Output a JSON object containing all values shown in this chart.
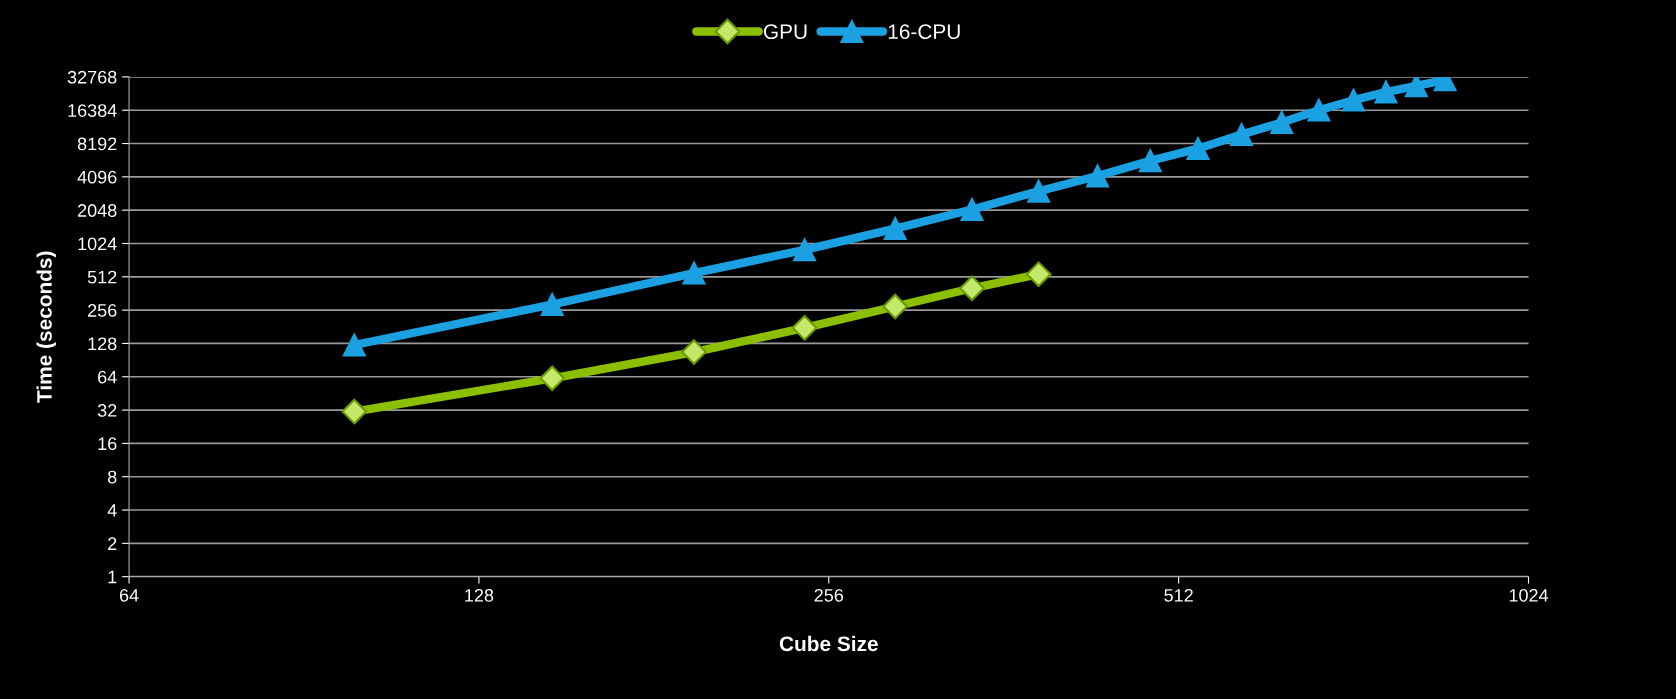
{
  "chart_data": {
    "type": "line",
    "xlabel": "Cube Size",
    "ylabel": "Time (seconds)",
    "log": "xy",
    "grid": "y",
    "legend": "top",
    "xlim": [
      64,
      1024
    ],
    "xticks": [
      64,
      128,
      256,
      512,
      1024
    ],
    "ylim": [
      1,
      32768
    ],
    "yticks": [
      1,
      2,
      4,
      8,
      16,
      32,
      64,
      128,
      256,
      512,
      1024,
      2048,
      4096,
      8192,
      16384,
      32768
    ],
    "series": [
      {
        "name": "GPU",
        "color": "#8cbf00",
        "marker": "diamond",
        "x": [
          100,
          148,
          196,
          244,
          292,
          340,
          388
        ],
        "values": [
          31,
          62,
          107,
          177,
          276,
          403,
          541
        ]
      },
      {
        "name": "16-CPU",
        "color": "#1ba1e2",
        "marker": "triangle",
        "x": [
          100,
          148,
          196,
          244,
          292,
          340,
          388,
          436,
          484,
          532,
          580,
          628,
          676,
          724,
          772,
          820,
          868
        ],
        "values": [
          124,
          288,
          553,
          897,
          1396,
          2080,
          3040,
          4170,
          5720,
          7370,
          9870,
          12700,
          16400,
          20200,
          23900,
          27200,
          30800
        ]
      }
    ]
  }
}
